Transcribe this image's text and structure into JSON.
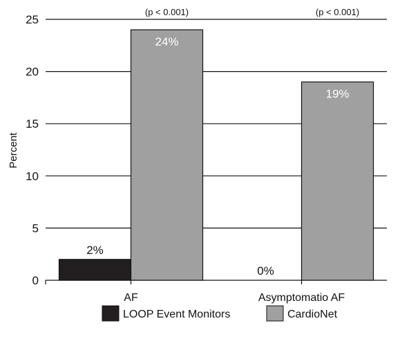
{
  "chart_data": {
    "type": "bar",
    "categories": [
      "AF",
      "Asymptomatio AF"
    ],
    "series": [
      {
        "name": "LOOP Event Monitors",
        "values": [
          2,
          0
        ],
        "labels": [
          "2%",
          "0%"
        ],
        "color": "#231f20",
        "label_color": "#111111"
      },
      {
        "name": "CardioNet",
        "values": [
          24,
          19
        ],
        "labels": [
          "24%",
          "19%"
        ],
        "color": "#a0a0a0",
        "label_color": "#ffffff"
      }
    ],
    "annotations": [
      "(p < 0.001)",
      "(p < 0.001)"
    ],
    "ylabel": "Percent",
    "xlabel": "",
    "ylim": [
      0,
      25
    ],
    "yticks": [
      0,
      5,
      10,
      15,
      20,
      25
    ],
    "grid": true,
    "legend_position": "bottom"
  }
}
